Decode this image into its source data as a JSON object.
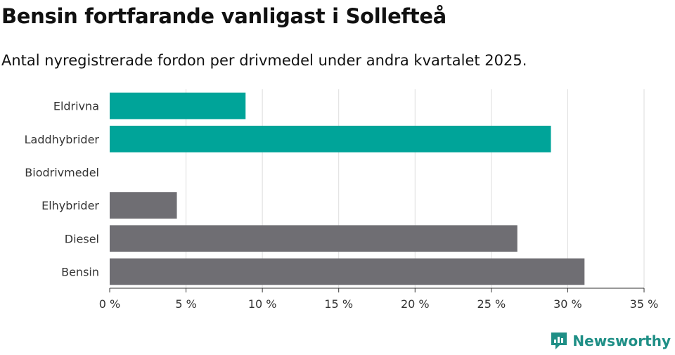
{
  "title": "Bensin fortfarande vanligast i Sollefteå",
  "subtitle": "Antal nyregistrerade fordon per drivmedel under andra kvartalet 2025.",
  "brand": {
    "name": "Newsworthy",
    "icon": "newsworthy-logo-icon"
  },
  "colors": {
    "highlight": "#00a499",
    "base": "#6f6e73",
    "grid": "#dddddd",
    "brand": "#1f8f86"
  },
  "chart_data": {
    "type": "bar",
    "orientation": "horizontal",
    "categories": [
      "Eldrivna",
      "Laddhybrider",
      "Biodrivmedel",
      "Elhybrider",
      "Diesel",
      "Bensin"
    ],
    "values": [
      8.9,
      28.9,
      0,
      4.4,
      26.7,
      31.1
    ],
    "highlighted": [
      "Eldrivna",
      "Laddhybrider"
    ],
    "xlim": [
      0,
      35
    ],
    "xticks": [
      0,
      5,
      10,
      15,
      20,
      25,
      30,
      35
    ],
    "xtick_labels": [
      "0 %",
      "5 %",
      "10 %",
      "15 %",
      "20 %",
      "25 %",
      "30 %",
      "35 %"
    ],
    "grid": true
  }
}
